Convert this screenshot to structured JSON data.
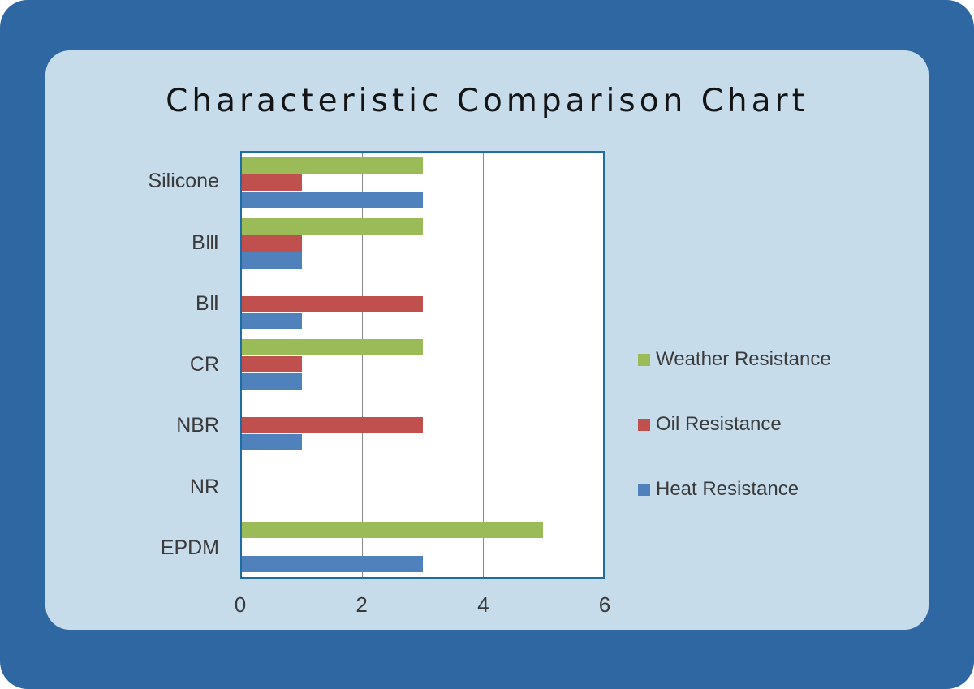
{
  "chart_data": {
    "type": "bar",
    "orientation": "horizontal",
    "title": "Characteristic Comparison Chart",
    "categories": [
      "Silicone",
      "BⅢ",
      "BⅡ",
      "CR",
      "NBR",
      "NR",
      "EPDM"
    ],
    "series": [
      {
        "name": "Weather Resistance",
        "color": "#9BBB59",
        "values": [
          3,
          3,
          0,
          3,
          0,
          0,
          5
        ]
      },
      {
        "name": "Oil Resistance",
        "color": "#C0504D",
        "values": [
          1,
          1,
          3,
          1,
          3,
          0,
          0
        ]
      },
      {
        "name": "Heat Resistance",
        "color": "#4F81BD",
        "values": [
          3,
          1,
          1,
          1,
          1,
          0,
          3
        ]
      }
    ],
    "xlim": [
      0,
      6
    ],
    "xticks": [
      0,
      2,
      4,
      6
    ],
    "grid": "vertical",
    "legend_position": "right"
  },
  "colors": {
    "outer_background": "#2F67A3",
    "panel_background": "#C7DCEB",
    "plot_background": "#FFFFFF",
    "plot_border": "#1E6CA3",
    "gridline": "#8A8A8A",
    "title_text": "#141414",
    "label_text": "#3A3A3A"
  }
}
